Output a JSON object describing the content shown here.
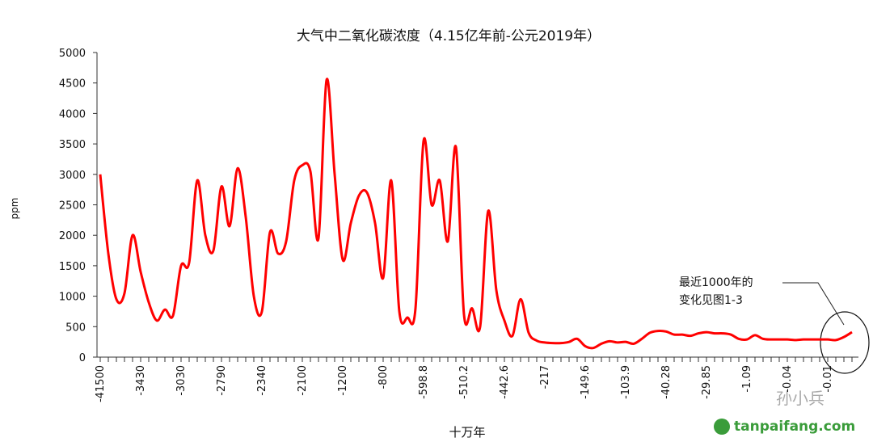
{
  "chart_data": {
    "type": "line",
    "title": "大气中二氧化碳浓度（4.15亿年前-公元2019年）",
    "x_label": "十万年",
    "y_label": "ppm",
    "categories": [
      "-41500",
      null,
      null,
      null,
      null,
      "-3430",
      null,
      null,
      null,
      null,
      "-3030",
      null,
      null,
      null,
      null,
      "-2790",
      null,
      null,
      null,
      null,
      "-2340",
      null,
      null,
      null,
      null,
      "-2100",
      null,
      null,
      null,
      null,
      "-1200",
      null,
      null,
      null,
      null,
      "-800",
      null,
      null,
      null,
      null,
      "-598.8",
      null,
      null,
      null,
      null,
      "-510.2",
      null,
      null,
      null,
      null,
      "-442.6",
      null,
      null,
      null,
      null,
      "-217",
      null,
      null,
      null,
      null,
      "-149.6",
      null,
      null,
      null,
      null,
      "-103.9",
      null,
      null,
      null,
      null,
      "-40.28",
      null,
      null,
      null,
      null,
      "-29.85",
      null,
      null,
      null,
      null,
      "-1.09",
      null,
      null,
      null,
      null,
      "-0.04",
      null,
      null,
      null,
      null,
      "-0.01",
      null,
      null,
      null
    ],
    "series": [
      {
        "name": "CO2",
        "color": "#ff0000",
        "values": [
          3000,
          1700,
          950,
          1050,
          2000,
          1400,
          900,
          600,
          780,
          680,
          1500,
          1550,
          2900,
          2000,
          1750,
          2800,
          2150,
          3100,
          2300,
          1000,
          750,
          2050,
          1700,
          1900,
          2900,
          3150,
          3050,
          1950,
          4550,
          3000,
          1600,
          2200,
          2650,
          2700,
          2200,
          1300,
          2900,
          750,
          650,
          800,
          3550,
          2500,
          2900,
          1900,
          3450,
          700,
          800,
          500,
          2400,
          1100,
          600,
          350,
          950,
          400,
          270,
          240,
          230,
          230,
          250,
          300,
          180,
          150,
          220,
          260,
          240,
          250,
          220,
          300,
          400,
          430,
          420,
          370,
          370,
          350,
          390,
          410,
          390,
          390,
          370,
          300,
          290,
          360,
          300,
          290,
          290,
          290,
          280,
          290,
          290,
          290,
          290,
          280,
          330,
          410
        ]
      }
    ],
    "ylim": [
      0,
      5000
    ],
    "yticks": [
      0,
      500,
      1000,
      1500,
      2000,
      2500,
      3000,
      3500,
      4000,
      4500,
      5000
    ],
    "grid": false,
    "annotation": [
      "最近1000年的",
      "变化见图1-3"
    ],
    "watermark": [
      "孙小兵",
      "tanpaifang.com"
    ]
  }
}
